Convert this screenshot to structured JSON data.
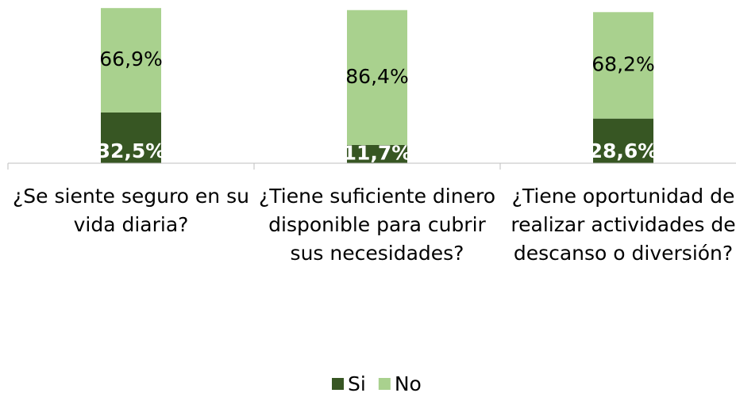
{
  "chart_data": {
    "type": "stacked-bar",
    "categories": [
      "¿Se siente seguro en su vida diaria?",
      "¿Tiene suficiente dinero disponible para cubrir sus necesidades?",
      "¿Tiene oportunidad de realizar actividades de descanso o diversión?"
    ],
    "series": [
      {
        "name": "Si",
        "color": "#375623",
        "values": [
          32.5,
          11.7,
          28.6
        ],
        "value_labels": [
          "32,5%",
          "11,7%",
          "28,6%"
        ]
      },
      {
        "name": "No",
        "color": "#a9d18e",
        "values": [
          66.9,
          86.4,
          68.2
        ],
        "value_labels": [
          "66,9%",
          "86,4%",
          "68,2%"
        ]
      }
    ],
    "ylim": [
      0,
      100
    ],
    "legend": "bottom"
  }
}
